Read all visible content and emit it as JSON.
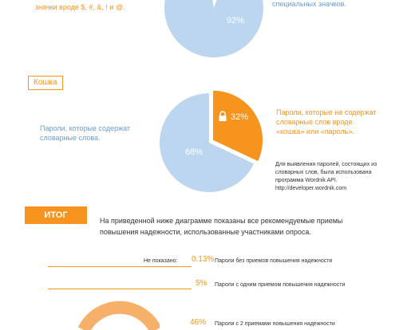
{
  "chart_data": [
    {
      "type": "pie",
      "slices": [
        {
          "label": "значки вроде $, #, &, ! и @.",
          "value": 8,
          "color": "#f7941d"
        },
        {
          "label": "специальных значков.",
          "value": 92,
          "color": "#bcd6ef"
        }
      ],
      "value_labels": [
        "92%"
      ]
    },
    {
      "type": "pie",
      "slices": [
        {
          "label": "Пароли, которые не содержат словарные слов вроде «кошка» или «пароль».",
          "value": 32,
          "color": "#f7941d"
        },
        {
          "label": "Пароли, которые содержат словарные слова.",
          "value": 68,
          "color": "#bcd6ef"
        }
      ],
      "value_labels": [
        "32%",
        "68%"
      ]
    },
    {
      "type": "table",
      "rows": [
        {
          "prefix": "Не показано:",
          "value": "0.13%",
          "label": "Пароли без приемов повышения надежности"
        },
        {
          "prefix": "",
          "value": "5%",
          "label": "Пароли с одним приемом повышения надежности"
        },
        {
          "prefix": "",
          "value": "46%",
          "label": "Пароли с 2 приемами повышения надежности"
        }
      ]
    }
  ],
  "top": {
    "left_caption": "значки вроде $, #, &, ! и @.",
    "right_caption": "специальных значков.",
    "pie_label": "92%"
  },
  "middle": {
    "tag": "Кошка",
    "orange_caption_1": "Пароли, которые не содержат",
    "orange_caption_2": "словарные слов вроде",
    "orange_caption_3": "«кошка» или «пароль».",
    "blue_caption_1": "Пароли, которые содержат",
    "blue_caption_2": "словарные слова.",
    "pct_orange": "32%",
    "pct_blue": "68%",
    "note_1": "Для выявления паролей, состоящих из",
    "note_2": "словарных слов, была использована",
    "note_3": "программа Wordnik API.",
    "note_4": "http://developer.wordnik.com"
  },
  "summary": {
    "tag": "ИТОГ",
    "text_1": "На приведенной ниже диаграмме показаны все рекомендуемые приемы",
    "text_2": "повышения надежности, использованные участниками опроса."
  },
  "colors": {
    "orange": "#f7941d",
    "light_blue": "#bcd6ef",
    "blue_text": "#6a9bd1"
  }
}
